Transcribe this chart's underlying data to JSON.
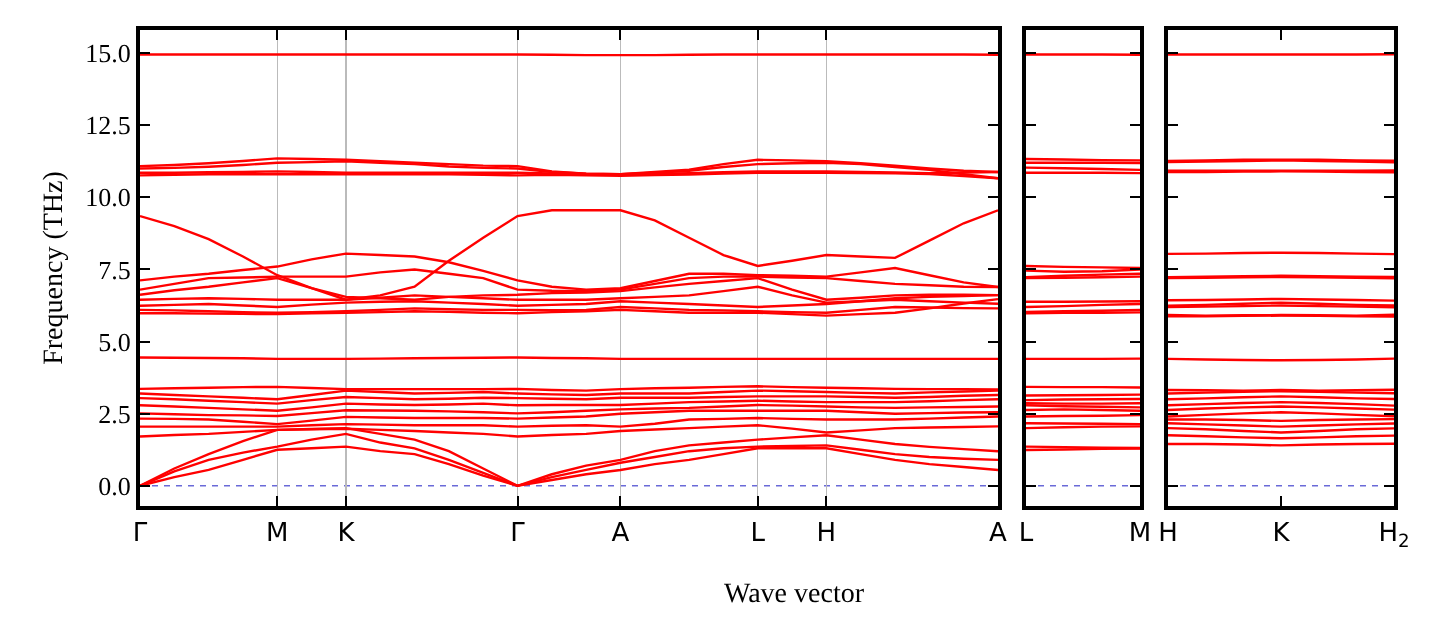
{
  "chart_data": [
    {
      "type": "line",
      "xlabel": "Wave vector",
      "ylabel": "Frequency (THz)",
      "ylim": [
        -0.7,
        15.8
      ],
      "categories": [
        "Γ",
        null,
        null,
        null,
        "M",
        null,
        "K",
        null,
        null,
        null,
        null,
        "Γ",
        null,
        null,
        "A",
        null,
        null,
        null,
        "L",
        null,
        "H",
        null,
        null,
        null,
        null,
        "A"
      ],
      "yticks": [
        {
          "value": 0,
          "label": "0.0"
        },
        {
          "value": 2.5,
          "label": "2.5"
        },
        {
          "value": 5,
          "label": "5.0"
        },
        {
          "value": 7.5,
          "label": "7.5"
        },
        {
          "value": 10,
          "label": "10.0"
        },
        {
          "value": 12.5,
          "label": "12.5"
        },
        {
          "value": 15,
          "label": "15.0"
        }
      ],
      "grid": "x",
      "line_style": "solid",
      "ref_lines": [
        {
          "axis": "y",
          "value": 0,
          "color": "#6a6ad8",
          "line_style": "dotted"
        }
      ],
      "series": [
        {
          "color": "#ff0000",
          "values": [
            14.95,
            14.95,
            14.95,
            14.95,
            14.95,
            14.95,
            14.95,
            14.95,
            14.95,
            14.95,
            14.95,
            14.95,
            14.94,
            14.93,
            14.93,
            14.93,
            14.94,
            14.95,
            14.95,
            14.95,
            14.95,
            14.95,
            14.95,
            14.95,
            14.95,
            14.94
          ]
        },
        {
          "color": "#ff0000",
          "values": [
            11.08,
            11.12,
            11.18,
            11.26,
            11.35,
            11.33,
            11.3,
            11.25,
            11.2,
            11.15,
            11.1,
            11.08,
            10.9,
            10.82,
            10.8,
            10.88,
            10.96,
            11.15,
            11.3,
            11.28,
            11.25,
            11.18,
            11.1,
            11.0,
            10.92,
            10.88
          ]
        },
        {
          "color": "#ff0000",
          "values": [
            11.0,
            11.02,
            11.06,
            11.12,
            11.2,
            11.22,
            11.25,
            11.2,
            11.15,
            11.07,
            11.02,
            11.0,
            10.88,
            10.82,
            10.8,
            10.85,
            10.92,
            11.05,
            11.15,
            11.18,
            11.2,
            11.15,
            11.05,
            10.95,
            10.8,
            10.66
          ]
        },
        {
          "color": "#ff0000",
          "values": [
            10.85,
            10.85,
            10.87,
            10.88,
            10.9,
            10.88,
            10.85,
            10.85,
            10.85,
            10.85,
            10.85,
            10.85,
            10.83,
            10.8,
            10.8,
            10.82,
            10.84,
            10.87,
            10.9,
            10.9,
            10.9,
            10.88,
            10.86,
            10.84,
            10.86,
            10.88
          ]
        },
        {
          "color": "#ff0000",
          "values": [
            10.76,
            10.78,
            10.8,
            10.8,
            10.8,
            10.8,
            10.8,
            10.8,
            10.8,
            10.8,
            10.78,
            10.76,
            10.78,
            10.76,
            10.75,
            10.77,
            10.79,
            10.82,
            10.85,
            10.85,
            10.85,
            10.84,
            10.83,
            10.81,
            10.74,
            10.66
          ]
        },
        {
          "color": "#ff0000",
          "values": [
            9.35,
            9.0,
            8.55,
            7.95,
            7.3,
            6.85,
            6.45,
            6.6,
            6.9,
            7.8,
            8.6,
            9.35,
            9.55,
            9.55,
            9.55,
            9.2,
            8.6,
            8.0,
            7.62,
            7.8,
            8.0,
            7.95,
            7.9,
            8.5,
            9.1,
            9.55
          ]
        },
        {
          "color": "#ff0000",
          "values": [
            7.12,
            7.25,
            7.35,
            7.48,
            7.6,
            7.85,
            8.05,
            8.0,
            7.95,
            7.75,
            7.45,
            7.12,
            6.9,
            6.8,
            6.85,
            7.1,
            7.35,
            7.35,
            7.3,
            7.28,
            7.25,
            7.4,
            7.55,
            7.3,
            7.05,
            6.89
          ]
        },
        {
          "color": "#ff0000",
          "values": [
            6.8,
            7.0,
            7.2,
            7.22,
            7.25,
            7.25,
            7.25,
            7.4,
            7.5,
            7.35,
            7.2,
            6.8,
            6.76,
            6.75,
            6.8,
            7.0,
            7.2,
            7.25,
            7.25,
            7.22,
            7.2,
            7.1,
            7.0,
            6.95,
            6.9,
            6.89
          ]
        },
        {
          "color": "#ff0000",
          "values": [
            6.62,
            6.78,
            6.9,
            7.05,
            7.2,
            6.85,
            6.55,
            6.5,
            6.45,
            6.55,
            6.6,
            6.62,
            6.68,
            6.7,
            6.75,
            6.88,
            7.0,
            7.1,
            7.2,
            6.8,
            6.45,
            6.52,
            6.6,
            6.62,
            6.62,
            6.61
          ]
        },
        {
          "color": "#ff0000",
          "values": [
            6.45,
            6.48,
            6.5,
            6.48,
            6.45,
            6.45,
            6.45,
            6.52,
            6.6,
            6.55,
            6.5,
            6.45,
            6.45,
            6.45,
            6.5,
            6.55,
            6.6,
            6.75,
            6.9,
            6.6,
            6.35,
            6.4,
            6.45,
            6.4,
            6.35,
            6.31
          ]
        },
        {
          "color": "#ff0000",
          "values": [
            6.24,
            6.27,
            6.3,
            6.25,
            6.2,
            6.28,
            6.35,
            6.38,
            6.4,
            6.35,
            6.3,
            6.24,
            6.27,
            6.3,
            6.4,
            6.35,
            6.3,
            6.25,
            6.2,
            6.25,
            6.3,
            6.4,
            6.5,
            6.55,
            6.58,
            6.61
          ]
        },
        {
          "color": "#ff0000",
          "values": [
            6.1,
            6.08,
            6.05,
            6.02,
            6.0,
            6.02,
            6.05,
            6.1,
            6.15,
            6.12,
            6.1,
            6.1,
            6.09,
            6.1,
            6.2,
            6.15,
            6.1,
            6.08,
            6.05,
            6.02,
            6.0,
            6.1,
            6.2,
            6.18,
            6.16,
            6.15
          ]
        },
        {
          "color": "#ff0000",
          "values": [
            5.98,
            5.98,
            5.97,
            5.96,
            5.95,
            5.98,
            6.0,
            6.02,
            6.05,
            6.03,
            6.0,
            5.98,
            6.02,
            6.05,
            6.1,
            6.05,
            6.0,
            6.0,
            6.0,
            5.95,
            5.9,
            5.95,
            6.0,
            6.15,
            6.32,
            6.47
          ]
        },
        {
          "color": "#ff0000",
          "values": [
            4.45,
            4.44,
            4.43,
            4.42,
            4.4,
            4.4,
            4.4,
            4.41,
            4.42,
            4.43,
            4.44,
            4.45,
            4.43,
            4.42,
            4.4,
            4.4,
            4.4,
            4.4,
            4.4,
            4.4,
            4.4,
            4.4,
            4.4,
            4.4,
            4.4,
            4.4
          ]
        },
        {
          "color": "#ff0000",
          "values": [
            3.36,
            3.38,
            3.4,
            3.42,
            3.43,
            3.39,
            3.35,
            3.35,
            3.35,
            3.35,
            3.35,
            3.36,
            3.32,
            3.3,
            3.35,
            3.38,
            3.4,
            3.43,
            3.45,
            3.42,
            3.4,
            3.38,
            3.36,
            3.35,
            3.35,
            3.34
          ]
        },
        {
          "color": "#ff0000",
          "values": [
            3.2,
            3.15,
            3.1,
            3.05,
            3.0,
            3.15,
            3.3,
            3.25,
            3.2,
            3.22,
            3.25,
            3.2,
            3.17,
            3.15,
            3.2,
            3.2,
            3.2,
            3.25,
            3.3,
            3.28,
            3.25,
            3.22,
            3.2,
            3.24,
            3.27,
            3.3
          ]
        },
        {
          "color": "#ff0000",
          "values": [
            3.04,
            3.0,
            2.95,
            2.9,
            2.85,
            2.97,
            3.08,
            3.04,
            3.0,
            3.02,
            3.05,
            3.04,
            3.02,
            3.0,
            3.05,
            3.05,
            3.05,
            3.08,
            3.1,
            3.1,
            3.1,
            3.08,
            3.05,
            3.08,
            3.12,
            3.15
          ]
        },
        {
          "color": "#ff0000",
          "values": [
            2.79,
            2.75,
            2.7,
            2.65,
            2.6,
            2.72,
            2.85,
            2.82,
            2.8,
            2.82,
            2.85,
            2.79,
            2.8,
            2.8,
            2.8,
            2.85,
            2.9,
            2.92,
            2.95,
            2.92,
            2.9,
            2.9,
            2.9,
            2.93,
            2.97,
            3.0
          ]
        },
        {
          "color": "#ff0000",
          "values": [
            2.51,
            2.48,
            2.45,
            2.44,
            2.42,
            2.52,
            2.62,
            2.61,
            2.6,
            2.58,
            2.55,
            2.51,
            2.55,
            2.6,
            2.65,
            2.68,
            2.7,
            2.75,
            2.8,
            2.78,
            2.75,
            2.72,
            2.7,
            2.72,
            2.73,
            2.75
          ]
        },
        {
          "color": "#ff0000",
          "values": [
            2.33,
            2.32,
            2.3,
            2.22,
            2.14,
            2.26,
            2.39,
            2.37,
            2.35,
            2.35,
            2.35,
            2.33,
            2.37,
            2.4,
            2.5,
            2.55,
            2.6,
            2.6,
            2.6,
            2.6,
            2.6,
            2.55,
            2.5,
            2.52,
            2.54,
            2.55
          ]
        },
        {
          "color": "#ff0000",
          "values": [
            2.05,
            2.05,
            2.05,
            2.05,
            2.05,
            2.1,
            2.14,
            2.12,
            2.1,
            2.1,
            2.1,
            2.05,
            2.08,
            2.1,
            2.05,
            2.15,
            2.3,
            2.32,
            2.35,
            2.32,
            2.3,
            2.3,
            2.3,
            2.33,
            2.37,
            2.4
          ]
        },
        {
          "color": "#ff0000",
          "values": [
            1.71,
            1.76,
            1.8,
            1.87,
            1.94,
            1.96,
            1.98,
            1.94,
            1.9,
            1.85,
            1.8,
            1.71,
            1.76,
            1.8,
            1.9,
            1.95,
            2.0,
            2.05,
            2.1,
            1.98,
            1.85,
            1.92,
            2.0,
            2.02,
            2.04,
            2.06
          ]
        },
        {
          "color": "#ff0000",
          "values": [
            0,
            0.6,
            1.1,
            1.55,
            1.94,
            1.97,
            2.0,
            1.8,
            1.6,
            1.2,
            0.6,
            0,
            0.4,
            0.7,
            0.9,
            1.2,
            1.4,
            1.5,
            1.6,
            1.68,
            1.75,
            1.6,
            1.45,
            1.35,
            1.27,
            1.2
          ]
        },
        {
          "color": "#ff0000",
          "values": [
            0,
            0.5,
            0.9,
            1.15,
            1.36,
            1.6,
            1.8,
            1.5,
            1.3,
            0.9,
            0.45,
            0,
            0.3,
            0.55,
            0.8,
            1.0,
            1.2,
            1.3,
            1.36,
            1.38,
            1.4,
            1.25,
            1.1,
            1.0,
            0.94,
            0.9
          ]
        },
        {
          "color": "#ff0000",
          "values": [
            0,
            0.3,
            0.55,
            0.9,
            1.25,
            1.3,
            1.36,
            1.2,
            1.1,
            0.75,
            0.35,
            0,
            0.2,
            0.4,
            0.55,
            0.75,
            0.9,
            1.1,
            1.3,
            1.3,
            1.3,
            1.1,
            0.9,
            0.75,
            0.65,
            0.55
          ]
        }
      ]
    },
    {
      "type": "line",
      "ylim": [
        -0.7,
        15.8
      ],
      "categories": [
        "L",
        null,
        null,
        "M"
      ],
      "yticks": [
        {
          "value": 0,
          "label": null
        },
        {
          "value": 2.5,
          "label": null
        },
        {
          "value": 5,
          "label": null
        },
        {
          "value": 7.5,
          "label": null
        },
        {
          "value": 10,
          "label": null
        },
        {
          "value": 12.5,
          "label": null
        },
        {
          "value": 15,
          "label": null
        }
      ],
      "tick_labels": "x",
      "line_style": "solid",
      "ref_lines": [
        {
          "axis": "y",
          "value": 0,
          "color": "#6a6ad8",
          "line_style": "dotted"
        }
      ],
      "series": [
        {
          "color": "#ff0000",
          "values": [
            14.95,
            14.95,
            14.95,
            14.94
          ]
        },
        {
          "color": "#ff0000",
          "values": [
            11.33,
            11.31,
            11.29,
            11.28
          ]
        },
        {
          "color": "#ff0000",
          "values": [
            11.2,
            11.2,
            11.2,
            11.19
          ]
        },
        {
          "color": "#ff0000",
          "values": [
            11.03,
            11.01,
            10.98,
            10.95
          ]
        },
        {
          "color": "#ff0000",
          "values": [
            10.85,
            10.85,
            10.85,
            10.84
          ]
        },
        {
          "color": "#ff0000",
          "values": [
            7.62,
            7.59,
            7.57,
            7.55
          ]
        },
        {
          "color": "#ff0000",
          "values": [
            7.46,
            7.42,
            7.44,
            7.5
          ]
        },
        {
          "color": "#ff0000",
          "values": [
            7.23,
            7.28,
            7.32,
            7.35
          ]
        },
        {
          "color": "#ff0000",
          "values": [
            7.2,
            7.21,
            7.23,
            7.25
          ]
        },
        {
          "color": "#ff0000",
          "values": [
            6.38,
            6.38,
            6.39,
            6.4
          ]
        },
        {
          "color": "#ff0000",
          "values": [
            6.2,
            6.23,
            6.27,
            6.3
          ]
        },
        {
          "color": "#ff0000",
          "values": [
            6.03,
            6.05,
            6.07,
            6.1
          ]
        },
        {
          "color": "#ff0000",
          "values": [
            5.98,
            6.0,
            6.0,
            6.01
          ]
        },
        {
          "color": "#ff0000",
          "values": [
            4.4,
            4.4,
            4.4,
            4.41
          ]
        },
        {
          "color": "#ff0000",
          "values": [
            3.43,
            3.42,
            3.42,
            3.41
          ]
        },
        {
          "color": "#ff0000",
          "values": [
            3.13,
            3.14,
            3.15,
            3.16
          ]
        },
        {
          "color": "#ff0000",
          "values": [
            2.97,
            2.99,
            3.0,
            3.01
          ]
        },
        {
          "color": "#ff0000",
          "values": [
            2.86,
            2.85,
            2.85,
            2.86
          ]
        },
        {
          "color": "#ff0000",
          "values": [
            2.79,
            2.76,
            2.74,
            2.72
          ]
        },
        {
          "color": "#ff0000",
          "values": [
            2.63,
            2.65,
            2.63,
            2.6
          ]
        },
        {
          "color": "#ff0000",
          "values": [
            2.4,
            2.42,
            2.43,
            2.45
          ]
        },
        {
          "color": "#ff0000",
          "values": [
            2.17,
            2.16,
            2.15,
            2.14
          ]
        },
        {
          "color": "#ff0000",
          "values": [
            2.0,
            2.03,
            2.05,
            2.06
          ]
        },
        {
          "color": "#ff0000",
          "values": [
            1.36,
            1.34,
            1.32,
            1.31
          ]
        },
        {
          "color": "#ff0000",
          "values": [
            1.24,
            1.26,
            1.28,
            1.29
          ]
        }
      ]
    },
    {
      "type": "line",
      "ylim": [
        -0.7,
        15.8
      ],
      "categories": [
        "H",
        null,
        null,
        "K",
        null,
        null,
        "H$_{2}$"
      ],
      "yticks": [
        {
          "value": 0,
          "label": null
        },
        {
          "value": 2.5,
          "label": null
        },
        {
          "value": 5,
          "label": null
        },
        {
          "value": 7.5,
          "label": null
        },
        {
          "value": 10,
          "label": null
        },
        {
          "value": 12.5,
          "label": null
        },
        {
          "value": 15,
          "label": null
        }
      ],
      "tick_labels": "x",
      "line_style": "solid",
      "ref_lines": [
        {
          "axis": "y",
          "value": 0,
          "color": "#6a6ad8",
          "line_style": "dotted"
        }
      ],
      "series": [
        {
          "color": "#ff0000",
          "values": [
            14.95,
            14.95,
            14.95,
            14.95,
            14.95,
            14.95,
            14.96
          ]
        },
        {
          "color": "#ff0000",
          "values": [
            11.26,
            11.28,
            11.3,
            11.3,
            11.3,
            11.28,
            11.27
          ]
        },
        {
          "color": "#ff0000",
          "values": [
            11.22,
            11.24,
            11.26,
            11.28,
            11.26,
            11.24,
            11.21
          ]
        },
        {
          "color": "#ff0000",
          "values": [
            10.92,
            10.92,
            10.92,
            10.92,
            10.92,
            10.92,
            10.93
          ]
        },
        {
          "color": "#ff0000",
          "values": [
            10.88,
            10.88,
            10.89,
            10.9,
            10.89,
            10.88,
            10.87
          ]
        },
        {
          "color": "#ff0000",
          "values": [
            8.04,
            8.05,
            8.07,
            8.08,
            8.07,
            8.05,
            8.03
          ]
        },
        {
          "color": "#ff0000",
          "values": [
            7.23,
            7.25,
            7.27,
            7.28,
            7.27,
            7.25,
            7.24
          ]
        },
        {
          "color": "#ff0000",
          "values": [
            7.2,
            7.21,
            7.23,
            7.24,
            7.23,
            7.21,
            7.19
          ]
        },
        {
          "color": "#ff0000",
          "values": [
            6.43,
            6.44,
            6.46,
            6.48,
            6.46,
            6.44,
            6.42
          ]
        },
        {
          "color": "#ff0000",
          "values": [
            6.24,
            6.27,
            6.31,
            6.35,
            6.31,
            6.27,
            6.25
          ]
        },
        {
          "color": "#ff0000",
          "values": [
            6.2,
            6.21,
            6.23,
            6.25,
            6.23,
            6.21,
            6.19
          ]
        },
        {
          "color": "#ff0000",
          "values": [
            5.92,
            5.9,
            5.91,
            5.92,
            5.91,
            5.9,
            5.93
          ]
        },
        {
          "color": "#ff0000",
          "values": [
            5.88,
            5.88,
            5.89,
            5.9,
            5.89,
            5.88,
            5.87
          ]
        },
        {
          "color": "#ff0000",
          "values": [
            4.4,
            4.38,
            4.36,
            4.35,
            4.36,
            4.38,
            4.41
          ]
        },
        {
          "color": "#ff0000",
          "values": [
            3.32,
            3.31,
            3.3,
            3.32,
            3.3,
            3.31,
            3.33
          ]
        },
        {
          "color": "#ff0000",
          "values": [
            3.2,
            3.23,
            3.26,
            3.28,
            3.26,
            3.23,
            3.21
          ]
        },
        {
          "color": "#ff0000",
          "values": [
            3.0,
            3.03,
            3.07,
            3.1,
            3.07,
            3.03,
            3.01
          ]
        },
        {
          "color": "#ff0000",
          "values": [
            2.79,
            2.83,
            2.87,
            2.9,
            2.87,
            2.83,
            2.78
          ]
        },
        {
          "color": "#ff0000",
          "values": [
            2.63,
            2.68,
            2.72,
            2.75,
            2.72,
            2.68,
            2.64
          ]
        },
        {
          "color": "#ff0000",
          "values": [
            2.4,
            2.46,
            2.51,
            2.55,
            2.51,
            2.46,
            2.41
          ]
        },
        {
          "color": "#ff0000",
          "values": [
            2.3,
            2.3,
            2.28,
            2.25,
            2.28,
            2.3,
            2.31
          ]
        },
        {
          "color": "#ff0000",
          "values": [
            2.17,
            2.13,
            2.09,
            2.05,
            2.09,
            2.13,
            2.16
          ]
        },
        {
          "color": "#ff0000",
          "values": [
            2.0,
            1.96,
            1.9,
            1.85,
            1.9,
            1.96,
            1.99
          ]
        },
        {
          "color": "#ff0000",
          "values": [
            1.75,
            1.72,
            1.68,
            1.65,
            1.68,
            1.72,
            1.74
          ]
        },
        {
          "color": "#ff0000",
          "values": [
            1.45,
            1.45,
            1.43,
            1.4,
            1.43,
            1.45,
            1.46
          ]
        }
      ]
    }
  ]
}
